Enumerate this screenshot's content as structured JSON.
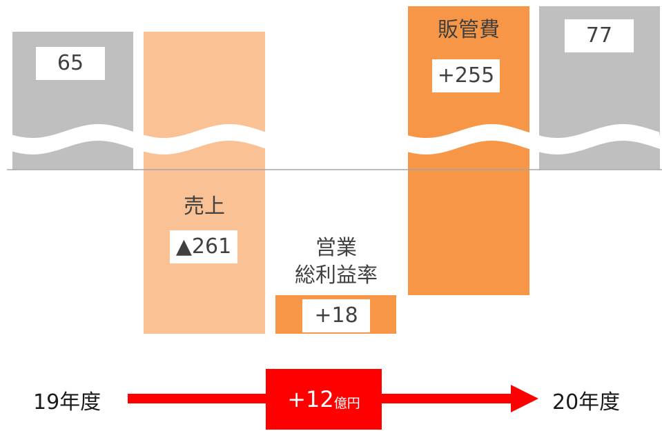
{
  "chart_data": {
    "type": "waterfall",
    "unit": "億円",
    "start": {
      "label": "19年度",
      "value": 65
    },
    "steps": [
      {
        "label": "売上",
        "display": "▲261",
        "value": -261,
        "color": "#f9c194"
      },
      {
        "label": "営業\n総利益率",
        "display": "+18",
        "value": 18,
        "color": "#f79646"
      },
      {
        "label": "販管費",
        "display": "+255",
        "value": 255,
        "color": "#f79646"
      }
    ],
    "end": {
      "label": "20年度",
      "value": 77
    },
    "total_change": {
      "display": "+12",
      "unit": "億円"
    },
    "colors": {
      "total_bar": "#bfbfbf",
      "negative": "#f9c194",
      "positive": "#f79646",
      "arrow": "#ff0000"
    }
  }
}
